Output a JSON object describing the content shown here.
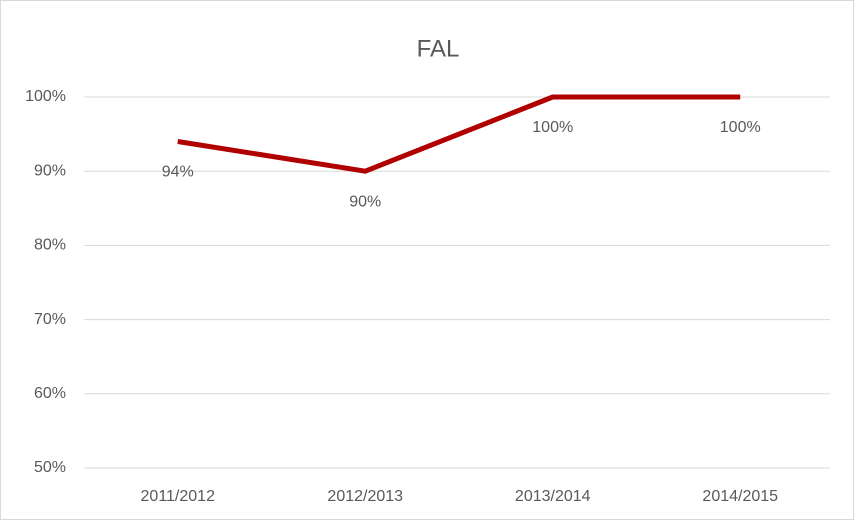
{
  "chart_data": {
    "type": "line",
    "title": "FAL",
    "categories": [
      "2011/2012",
      "2012/2013",
      "2013/2014",
      "2014/2015"
    ],
    "values": [
      94,
      90,
      100,
      100
    ],
    "value_labels": [
      "94%",
      "90%",
      "100%",
      "100%"
    ],
    "color": "#b00000",
    "ylim": [
      50,
      100
    ],
    "yticks": [
      {
        "value": 50,
        "label": "50%"
      },
      {
        "value": 60,
        "label": "60%"
      },
      {
        "value": 70,
        "label": "70%"
      },
      {
        "value": 80,
        "label": "80%"
      },
      {
        "value": 90,
        "label": "90%"
      },
      {
        "value": 100,
        "label": "100%"
      }
    ],
    "grid": true
  }
}
